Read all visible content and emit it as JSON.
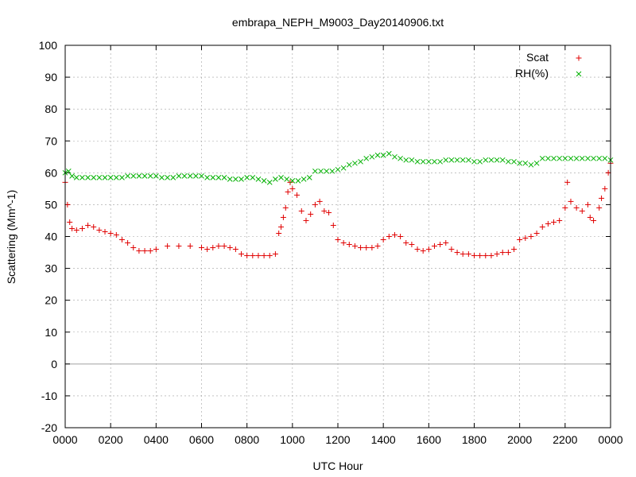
{
  "chart_data": {
    "type": "scatter",
    "title": "embrapa_NEPH_M9003_Day20140906.txt",
    "xlabel": "UTC Hour",
    "ylabel": "Scattering (Mm^-1)",
    "xlim": [
      0,
      24
    ],
    "ylim": [
      -20,
      100
    ],
    "xticks": [
      0,
      2,
      4,
      6,
      8,
      10,
      12,
      14,
      16,
      18,
      20,
      22,
      24
    ],
    "xtick_labels": [
      "0000",
      "0200",
      "0400",
      "0600",
      "0800",
      "1000",
      "1200",
      "1400",
      "1600",
      "1800",
      "2000",
      "2200",
      "0000"
    ],
    "yticks": [
      -20,
      -10,
      0,
      10,
      20,
      30,
      40,
      50,
      60,
      70,
      80,
      90,
      100
    ],
    "grid": true,
    "legend_position": "top-right",
    "series": [
      {
        "name": "Scat",
        "color": "#e00000",
        "marker": "plus",
        "x": [
          0.0,
          0.1,
          0.2,
          0.3,
          0.5,
          0.75,
          1.0,
          1.25,
          1.5,
          1.75,
          2.0,
          2.25,
          2.5,
          2.75,
          3.0,
          3.25,
          3.5,
          3.75,
          4.0,
          4.5,
          5.0,
          5.5,
          6.0,
          6.25,
          6.5,
          6.75,
          7.0,
          7.25,
          7.5,
          7.75,
          8.0,
          8.25,
          8.5,
          8.75,
          9.0,
          9.25,
          9.4,
          9.5,
          9.6,
          9.7,
          9.8,
          9.9,
          10.0,
          10.2,
          10.4,
          10.6,
          10.8,
          11.0,
          11.2,
          11.4,
          11.6,
          11.8,
          12.0,
          12.25,
          12.5,
          12.75,
          13.0,
          13.25,
          13.5,
          13.75,
          14.0,
          14.25,
          14.5,
          14.75,
          15.0,
          15.25,
          15.5,
          15.75,
          16.0,
          16.25,
          16.5,
          16.75,
          17.0,
          17.25,
          17.5,
          17.75,
          18.0,
          18.25,
          18.5,
          18.75,
          19.0,
          19.25,
          19.5,
          19.75,
          20.0,
          20.25,
          20.5,
          20.75,
          21.0,
          21.25,
          21.5,
          21.75,
          22.0,
          22.1,
          22.25,
          22.5,
          22.75,
          23.0,
          23.1,
          23.25,
          23.5,
          23.6,
          23.75,
          23.9,
          24.0
        ],
        "y": [
          57.0,
          50.0,
          44.5,
          42.5,
          42.0,
          42.5,
          43.5,
          43.0,
          42.0,
          41.5,
          41.0,
          40.5,
          39.0,
          38.0,
          36.5,
          35.5,
          35.5,
          35.5,
          36.0,
          37.0,
          37.0,
          37.0,
          36.5,
          36.0,
          36.5,
          37.0,
          37.0,
          36.5,
          36.0,
          34.5,
          34.0,
          34.0,
          34.0,
          34.0,
          34.0,
          34.5,
          41.0,
          43.0,
          46.0,
          49.0,
          54.0,
          57.0,
          55.0,
          53.0,
          48.0,
          45.0,
          47.0,
          50.0,
          51.0,
          48.0,
          47.5,
          43.5,
          39.0,
          38.0,
          37.5,
          37.0,
          36.5,
          36.5,
          36.5,
          37.0,
          39.0,
          40.0,
          40.5,
          40.0,
          38.0,
          37.5,
          36.0,
          35.5,
          36.0,
          37.0,
          37.5,
          38.0,
          36.0,
          35.0,
          34.5,
          34.5,
          34.0,
          34.0,
          34.0,
          34.0,
          34.5,
          35.0,
          35.0,
          36.0,
          39.0,
          39.5,
          40.0,
          41.0,
          43.0,
          44.0,
          44.5,
          45.0,
          49.0,
          57.0,
          51.0,
          49.0,
          48.0,
          50.0,
          46.0,
          45.0,
          49.0,
          52.0,
          55.0,
          60.0,
          63.0
        ]
      },
      {
        "name": "RH(%)",
        "color": "#00b000",
        "marker": "cross",
        "x": [
          0.0,
          0.15,
          0.3,
          0.5,
          0.75,
          1.0,
          1.25,
          1.5,
          1.75,
          2.0,
          2.25,
          2.5,
          2.75,
          3.0,
          3.25,
          3.5,
          3.75,
          4.0,
          4.25,
          4.5,
          4.75,
          5.0,
          5.25,
          5.5,
          5.75,
          6.0,
          6.25,
          6.5,
          6.75,
          7.0,
          7.25,
          7.5,
          7.75,
          8.0,
          8.25,
          8.5,
          8.75,
          9.0,
          9.25,
          9.5,
          9.75,
          10.0,
          10.25,
          10.5,
          10.75,
          11.0,
          11.25,
          11.5,
          11.75,
          12.0,
          12.25,
          12.5,
          12.75,
          13.0,
          13.25,
          13.5,
          13.75,
          14.0,
          14.25,
          14.5,
          14.75,
          15.0,
          15.25,
          15.5,
          15.75,
          16.0,
          16.25,
          16.5,
          16.75,
          17.0,
          17.25,
          17.5,
          17.75,
          18.0,
          18.25,
          18.5,
          18.75,
          19.0,
          19.25,
          19.5,
          19.75,
          20.0,
          20.25,
          20.5,
          20.75,
          21.0,
          21.25,
          21.5,
          21.75,
          22.0,
          22.25,
          22.5,
          22.75,
          23.0,
          23.25,
          23.5,
          23.75,
          24.0
        ],
        "y": [
          60.0,
          60.5,
          59.0,
          58.5,
          58.5,
          58.5,
          58.5,
          58.5,
          58.5,
          58.5,
          58.5,
          58.5,
          59.0,
          59.0,
          59.0,
          59.0,
          59.0,
          59.0,
          58.5,
          58.5,
          58.5,
          59.0,
          59.0,
          59.0,
          59.0,
          59.0,
          58.5,
          58.5,
          58.5,
          58.5,
          58.0,
          58.0,
          58.0,
          58.5,
          58.5,
          58.0,
          57.5,
          57.0,
          58.0,
          58.5,
          58.0,
          57.5,
          57.5,
          58.0,
          58.5,
          60.5,
          60.5,
          60.5,
          60.5,
          61.0,
          61.5,
          62.5,
          63.0,
          63.5,
          64.5,
          65.0,
          65.5,
          65.5,
          66.0,
          65.0,
          64.5,
          64.0,
          64.0,
          63.5,
          63.5,
          63.5,
          63.5,
          63.5,
          64.0,
          64.0,
          64.0,
          64.0,
          64.0,
          63.5,
          63.5,
          64.0,
          64.0,
          64.0,
          64.0,
          63.5,
          63.5,
          63.0,
          63.0,
          62.5,
          63.0,
          64.5,
          64.5,
          64.5,
          64.5,
          64.5,
          64.5,
          64.5,
          64.5,
          64.5,
          64.5,
          64.5,
          64.5,
          64.0
        ]
      }
    ]
  }
}
